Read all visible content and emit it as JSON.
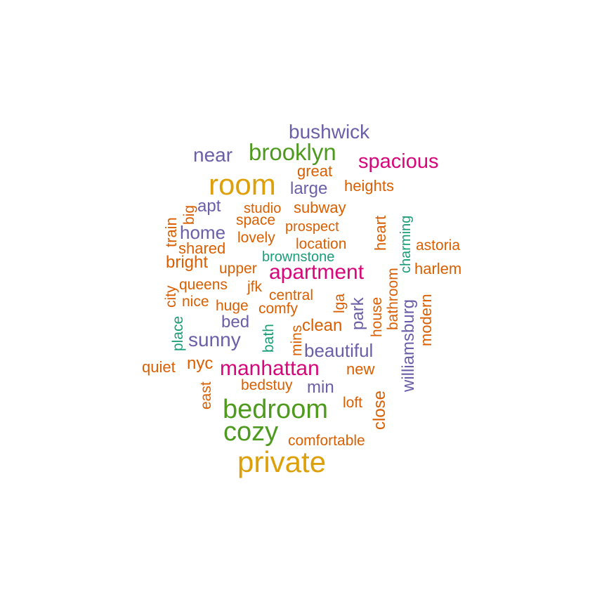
{
  "palette": {
    "orange": "#d95f02",
    "purple": "#6a5fa8",
    "green": "#4e9a1e",
    "magenta": "#d6077a",
    "teal": "#1b9e77",
    "gold": "#dea00a"
  },
  "words": [
    {
      "text": "private",
      "color": "gold",
      "vertical": false
    },
    {
      "text": "room",
      "color": "gold",
      "vertical": false
    },
    {
      "text": "bedroom",
      "color": "green",
      "vertical": false
    },
    {
      "text": "cozy",
      "color": "green",
      "vertical": false
    },
    {
      "text": "brooklyn",
      "color": "green",
      "vertical": false
    },
    {
      "text": "manhattan",
      "color": "magenta",
      "vertical": false
    },
    {
      "text": "apartment",
      "color": "magenta",
      "vertical": false
    },
    {
      "text": "spacious",
      "color": "magenta",
      "vertical": false
    },
    {
      "text": "bushwick",
      "color": "purple",
      "vertical": false
    },
    {
      "text": "near",
      "color": "purple",
      "vertical": false
    },
    {
      "text": "sunny",
      "color": "purple",
      "vertical": false
    },
    {
      "text": "beautiful",
      "color": "purple",
      "vertical": false
    },
    {
      "text": "williamsburg",
      "color": "purple",
      "vertical": true
    },
    {
      "text": "home",
      "color": "purple",
      "vertical": false
    },
    {
      "text": "apt",
      "color": "purple",
      "vertical": false
    },
    {
      "text": "large",
      "color": "purple",
      "vertical": false
    },
    {
      "text": "park",
      "color": "purple",
      "vertical": true
    },
    {
      "text": "bed",
      "color": "purple",
      "vertical": false
    },
    {
      "text": "min",
      "color": "purple",
      "vertical": false
    },
    {
      "text": "great",
      "color": "orange",
      "vertical": false
    },
    {
      "text": "heights",
      "color": "orange",
      "vertical": false
    },
    {
      "text": "studio",
      "color": "orange",
      "vertical": false
    },
    {
      "text": "subway",
      "color": "orange",
      "vertical": false
    },
    {
      "text": "space",
      "color": "orange",
      "vertical": false
    },
    {
      "text": "prospect",
      "color": "orange",
      "vertical": false
    },
    {
      "text": "lovely",
      "color": "orange",
      "vertical": false
    },
    {
      "text": "location",
      "color": "orange",
      "vertical": false
    },
    {
      "text": "shared",
      "color": "orange",
      "vertical": false
    },
    {
      "text": "bright",
      "color": "orange",
      "vertical": false
    },
    {
      "text": "upper",
      "color": "orange",
      "vertical": false
    },
    {
      "text": "queens",
      "color": "orange",
      "vertical": false
    },
    {
      "text": "jfk",
      "color": "orange",
      "vertical": false
    },
    {
      "text": "central",
      "color": "orange",
      "vertical": false
    },
    {
      "text": "nice",
      "color": "orange",
      "vertical": false
    },
    {
      "text": "huge",
      "color": "orange",
      "vertical": false
    },
    {
      "text": "comfy",
      "color": "orange",
      "vertical": false
    },
    {
      "text": "clean",
      "color": "orange",
      "vertical": false
    },
    {
      "text": "astoria",
      "color": "orange",
      "vertical": false
    },
    {
      "text": "harlem",
      "color": "orange",
      "vertical": false
    },
    {
      "text": "quiet",
      "color": "orange",
      "vertical": false
    },
    {
      "text": "nyc",
      "color": "orange",
      "vertical": false
    },
    {
      "text": "new",
      "color": "orange",
      "vertical": false
    },
    {
      "text": "bedstuy",
      "color": "orange",
      "vertical": false
    },
    {
      "text": "loft",
      "color": "orange",
      "vertical": false
    },
    {
      "text": "comfortable",
      "color": "orange",
      "vertical": false
    },
    {
      "text": "train",
      "color": "orange",
      "vertical": true
    },
    {
      "text": "big",
      "color": "orange",
      "vertical": true
    },
    {
      "text": "city",
      "color": "orange",
      "vertical": true
    },
    {
      "text": "heart",
      "color": "orange",
      "vertical": true
    },
    {
      "text": "lga",
      "color": "orange",
      "vertical": true
    },
    {
      "text": "house",
      "color": "orange",
      "vertical": true
    },
    {
      "text": "bathroom",
      "color": "orange",
      "vertical": true
    },
    {
      "text": "modern",
      "color": "orange",
      "vertical": true
    },
    {
      "text": "mins",
      "color": "orange",
      "vertical": true
    },
    {
      "text": "east",
      "color": "orange",
      "vertical": true
    },
    {
      "text": "close",
      "color": "orange",
      "vertical": true
    },
    {
      "text": "brownstone",
      "color": "teal",
      "vertical": false
    },
    {
      "text": "charming",
      "color": "teal",
      "vertical": true
    },
    {
      "text": "place",
      "color": "teal",
      "vertical": true
    },
    {
      "text": "bath",
      "color": "teal",
      "vertical": true
    }
  ]
}
